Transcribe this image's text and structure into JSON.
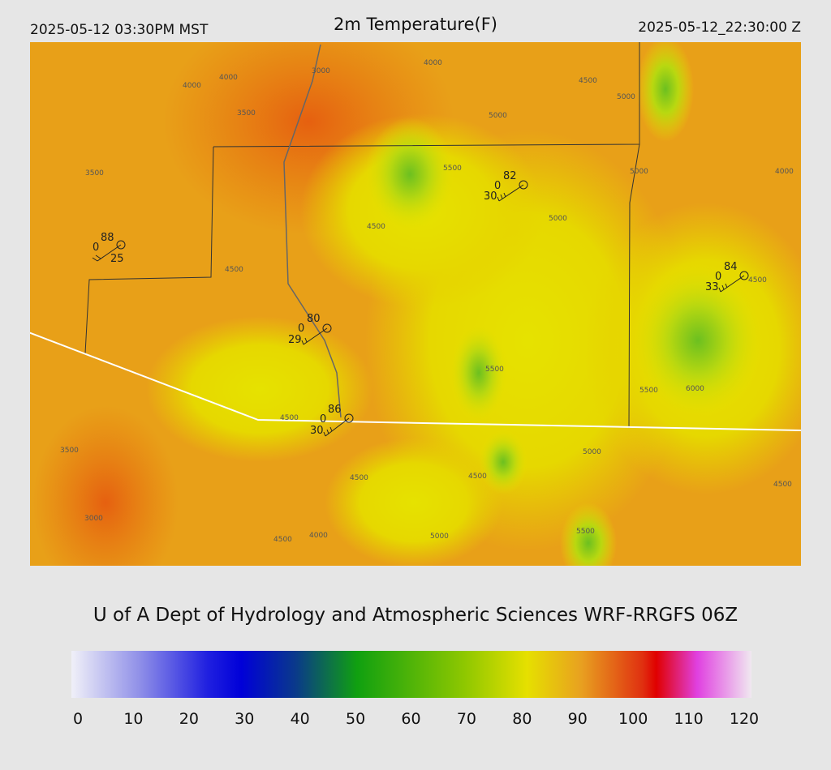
{
  "header": {
    "left": "2025-05-12 03:30PM MST",
    "title": "2m Temperature(F)",
    "right": "2025-05-12_22:30:00 Z"
  },
  "stations": [
    {
      "temperature": 88,
      "cloud": 0,
      "dewpoint": 25
    },
    {
      "temperature": 82,
      "cloud": 0,
      "dewpoint": 30
    },
    {
      "temperature": 84,
      "cloud": 0,
      "dewpoint": 33
    },
    {
      "temperature": 80,
      "cloud": 0,
      "dewpoint": 29
    },
    {
      "temperature": 86,
      "cloud": 0,
      "dewpoint": 30
    }
  ],
  "contour_labels": [
    4000,
    4000,
    3500,
    3500,
    3000,
    4000,
    4500,
    5000,
    5000,
    5500,
    4500,
    4500,
    5000,
    5000,
    4000,
    4500,
    5500,
    5500,
    6000,
    4500,
    3500,
    4500,
    5000,
    4500,
    4500,
    3000,
    4500,
    4000,
    5000,
    5500
  ],
  "credit": "U of A Dept of Hydrology and Atmospheric Sciences WRF-RRGFS 06Z",
  "colorbar": {
    "ticks": [
      0,
      10,
      20,
      30,
      40,
      50,
      60,
      70,
      80,
      90,
      100,
      110,
      120
    ]
  }
}
